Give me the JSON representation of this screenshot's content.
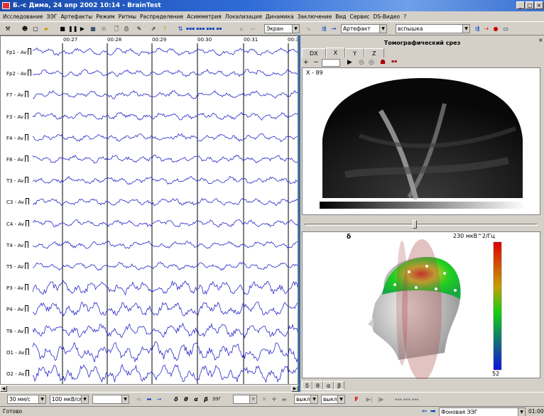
{
  "window": {
    "title": "Б.-с Дима, 24 апр 2002 10:14 - BrainTest",
    "controls": [
      "_",
      "□",
      "×"
    ]
  },
  "menu": [
    "Исследование",
    "ЭЭГ",
    "Артефакты",
    "Режим",
    "Ритмы",
    "Распределение",
    "Асимметрия",
    "Локализация",
    "Динамика",
    "Заключение",
    "Вид",
    "Сервис",
    "DS-Видео",
    "?"
  ],
  "toolbar": {
    "screen_combo": "Экран",
    "artifact_combo": "Артефакт",
    "event_combo": "вспышка"
  },
  "eeg": {
    "channels": [
      "Fp1 - Av",
      "Fp2 - Av",
      "F7 - Av",
      "F3 - Av",
      "F4 - Av",
      "F8 - Av",
      "T3 - Av",
      "C3 - Av",
      "C4 - Av",
      "T4 - Av",
      "T5 - Av",
      "P3 - Av",
      "P4 - Av",
      "T6 - Av",
      "O1 - Av",
      "O2 - Av"
    ],
    "time_marks": [
      "00:27",
      "00:28",
      "00:29",
      "00:30",
      "00:31",
      "00:3"
    ],
    "trace_color": "#2828c8"
  },
  "bottom": {
    "speed_combo": "30 мм/с",
    "sens_combo": "100 мкВ/см",
    "empty_combo": "",
    "rhythm_buttons": [
      "δ",
      "θ",
      "α",
      "β",
      "ЭЭГ"
    ],
    "off1": "выкл",
    "off2": "выкл",
    "f_label": "F"
  },
  "status": {
    "left": "Готово",
    "record_combo": "Фоновая ЭЭГ",
    "time": "01:00"
  },
  "right": {
    "panel_title": "Томографический срез",
    "tabs": [
      "DX",
      "X",
      "Y",
      "Z"
    ],
    "slice_label": "X - 89",
    "head_band": "δ",
    "scale_max": "230 мкВ^2/Гц",
    "scale_min": "52",
    "band_tabs": [
      "δ",
      "θ",
      "α",
      "β"
    ]
  }
}
